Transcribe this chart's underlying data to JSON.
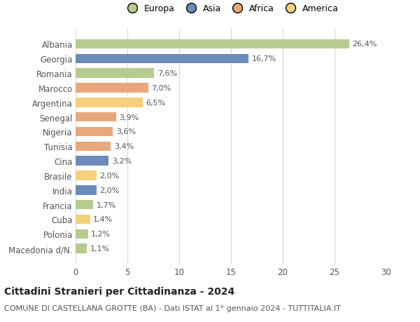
{
  "categories": [
    "Albania",
    "Georgia",
    "Romania",
    "Marocco",
    "Argentina",
    "Senegal",
    "Nigeria",
    "Tunisia",
    "Cina",
    "Brasile",
    "India",
    "Francia",
    "Cuba",
    "Polonia",
    "Macedonia d/N."
  ],
  "values": [
    26.4,
    16.7,
    7.6,
    7.0,
    6.5,
    3.9,
    3.6,
    3.4,
    3.2,
    2.0,
    2.0,
    1.7,
    1.4,
    1.2,
    1.1
  ],
  "labels": [
    "26,4%",
    "16,7%",
    "7,6%",
    "7,0%",
    "6,5%",
    "3,9%",
    "3,6%",
    "3,4%",
    "3,2%",
    "2,0%",
    "2,0%",
    "1,7%",
    "1,4%",
    "1,2%",
    "1,1%"
  ],
  "colors": [
    "#b5cc8e",
    "#6b8cba",
    "#b5cc8e",
    "#e8a87c",
    "#f5d07a",
    "#e8a87c",
    "#e8a87c",
    "#e8a87c",
    "#6b8cba",
    "#f5d07a",
    "#6b8cba",
    "#b5cc8e",
    "#f5d07a",
    "#b5cc8e",
    "#b5cc8e"
  ],
  "legend_labels": [
    "Europa",
    "Asia",
    "Africa",
    "America"
  ],
  "legend_colors": [
    "#b5cc8e",
    "#6b8cba",
    "#e8a87c",
    "#f5d07a"
  ],
  "title": "Cittadini Stranieri per Cittadinanza - 2024",
  "subtitle": "COMUNE DI CASTELLANA GROTTE (BA) - Dati ISTAT al 1° gennaio 2024 - TUTTITALIA.IT",
  "xlim": [
    0,
    30
  ],
  "xticks": [
    0,
    5,
    10,
    15,
    20,
    25,
    30
  ],
  "background_color": "#ffffff",
  "grid_color": "#d8d8d8",
  "bar_height": 0.65,
  "title_fontsize": 10,
  "subtitle_fontsize": 8,
  "label_fontsize": 8,
  "ytick_fontsize": 8.5,
  "xtick_fontsize": 8.5,
  "legend_fontsize": 9
}
